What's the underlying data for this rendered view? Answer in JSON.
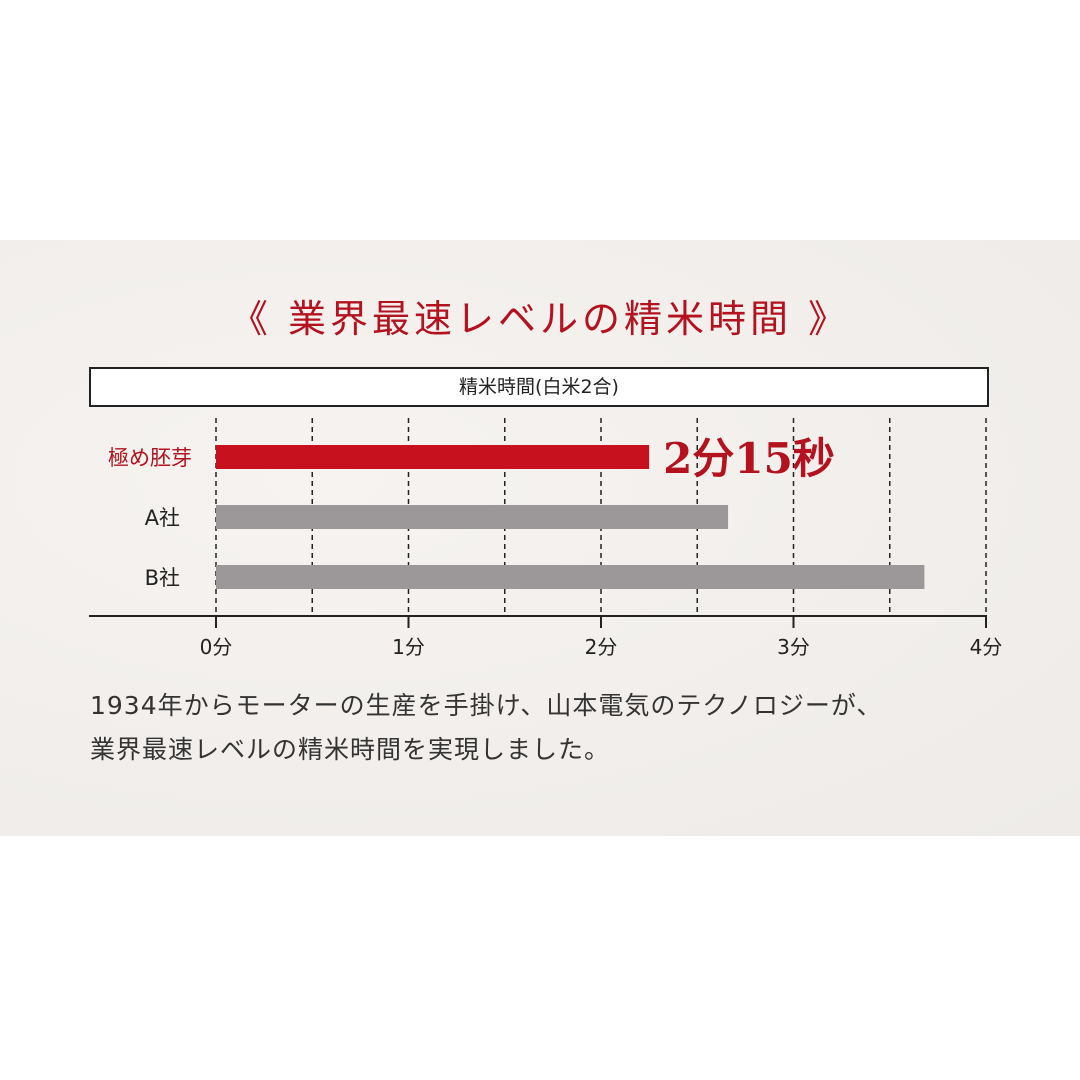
{
  "title": "《 業界最速レベルの精米時間 》",
  "chart_data": {
    "type": "bar",
    "orientation": "horizontal",
    "title": "精米時間(白米2合)",
    "categories": [
      "極め胚芽",
      "A社",
      "B社"
    ],
    "values": [
      2.25,
      2.66,
      3.68
    ],
    "unit": "分",
    "xlim": [
      0,
      4
    ],
    "x_ticks": [
      "0分",
      "1分",
      "2分",
      "3分",
      "4分"
    ],
    "grid": "dashed vertical every 0.5分",
    "annotation": "2分15秒",
    "colors": {
      "highlight": "#c8111f",
      "others": "#9c9799",
      "highlight_label": "#b3121e"
    }
  },
  "description": [
    "1934年からモーターの生産を手掛け、山本電気のテクノロジーが、",
    "業界最速レベルの精米時間を実現しました。"
  ]
}
